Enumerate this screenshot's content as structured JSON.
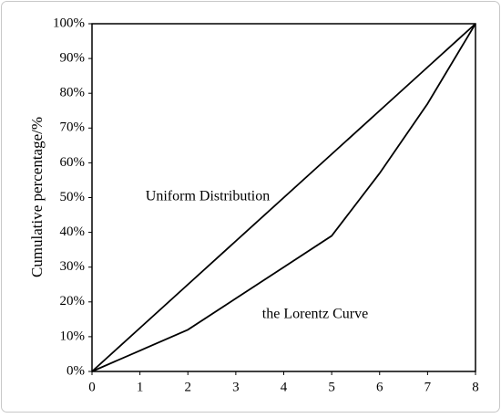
{
  "chart_data": {
    "type": "line",
    "x": [
      0,
      1,
      2,
      3,
      4,
      5,
      6,
      7,
      8
    ],
    "series": [
      {
        "name": "Uniform Distribution",
        "color": "#000000",
        "values": [
          0,
          12.5,
          25,
          37.5,
          50,
          62.5,
          75,
          87.5,
          100
        ]
      },
      {
        "name": "the Lorentz Curve",
        "color": "#000000",
        "values": [
          0,
          6,
          12,
          21,
          30,
          39,
          57,
          77,
          100
        ]
      }
    ],
    "ylabel": "Cumulative percentage/%",
    "xlim": [
      0,
      8
    ],
    "xticks": [
      0,
      1,
      2,
      3,
      4,
      5,
      6,
      7,
      8
    ],
    "ylim": [
      0,
      100
    ],
    "yticks": [
      {
        "value": 0,
        "label": "0%"
      },
      {
        "value": 10,
        "label": "10%"
      },
      {
        "value": 20,
        "label": "20%"
      },
      {
        "value": 30,
        "label": "30%"
      },
      {
        "value": 40,
        "label": "40%"
      },
      {
        "value": 50,
        "label": "50%"
      },
      {
        "value": 60,
        "label": "60%"
      },
      {
        "value": 70,
        "label": "70%"
      },
      {
        "value": 80,
        "label": "80%"
      },
      {
        "value": 90,
        "label": "90%"
      },
      {
        "value": 100,
        "label": "100%"
      }
    ]
  }
}
